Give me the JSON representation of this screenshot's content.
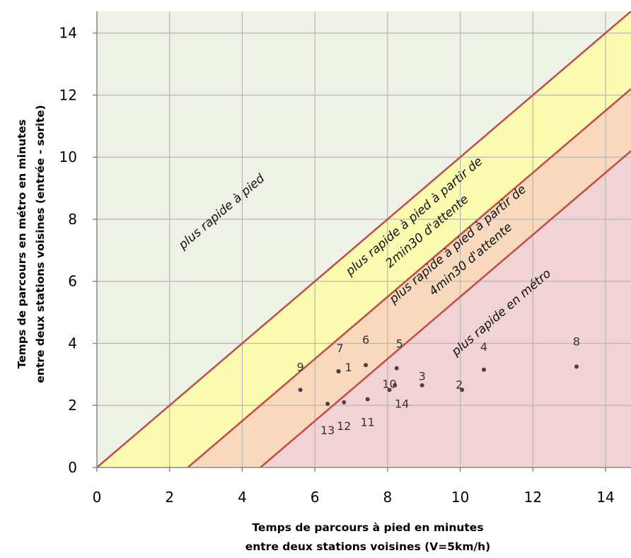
{
  "chart_data": {
    "type": "scatter",
    "xlabel_lines": [
      "Temps de parcours à pied en minutes",
      "entre deux stations voisines (V=5km/h)"
    ],
    "ylabel_lines": [
      "Temps de parcours en métro en minutes",
      "entre deux stations voisines (entrée - sorite)"
    ],
    "xlim": [
      0,
      14.7
    ],
    "ylim": [
      0,
      14.7
    ],
    "xticks": [
      0,
      2,
      4,
      6,
      8,
      10,
      12,
      14
    ],
    "yticks": [
      0,
      2,
      4,
      6,
      8,
      10,
      12,
      14
    ],
    "grid": true,
    "boundary_lines": [
      {
        "x_intercept": 0
      },
      {
        "x_intercept": 2.5
      },
      {
        "x_intercept": 4.5
      }
    ],
    "zones": [
      {
        "color": "#eef1e5"
      },
      {
        "color": "#fbfbb0"
      },
      {
        "color": "#f8d9bd"
      },
      {
        "color": "#f1d2d5"
      }
    ],
    "zone_labels": [
      {
        "lines": [
          "plus rapide à pied"
        ]
      },
      {
        "lines": [
          "plus rapide à pied à partir de",
          "2min30 d'attente"
        ]
      },
      {
        "lines": [
          "plus rapide à pied à partir de",
          "4min30 d'attente"
        ]
      },
      {
        "lines": [
          "plus rapide en métro"
        ]
      }
    ],
    "points": [
      {
        "label": "1",
        "x": 6.65,
        "y": 3.1
      },
      {
        "label": "2",
        "x": 10.05,
        "y": 2.5
      },
      {
        "label": "3",
        "x": 8.95,
        "y": 2.65
      },
      {
        "label": "4",
        "x": 10.65,
        "y": 3.15
      },
      {
        "label": "5",
        "x": 8.25,
        "y": 3.2
      },
      {
        "label": "6",
        "x": 7.4,
        "y": 3.3
      },
      {
        "label": "7",
        "x": 6.65,
        "y": 3.1
      },
      {
        "label": "8",
        "x": 13.2,
        "y": 3.25
      },
      {
        "label": "9",
        "x": 5.6,
        "y": 2.5
      },
      {
        "label": "10",
        "x": 8.05,
        "y": 2.5
      },
      {
        "label": "11",
        "x": 7.45,
        "y": 2.2
      },
      {
        "label": "12",
        "x": 6.8,
        "y": 2.1
      },
      {
        "label": "13",
        "x": 6.35,
        "y": 2.05
      },
      {
        "label": "14",
        "x": 8.2,
        "y": 2.65
      }
    ],
    "colors": {
      "boundary_line": "#c0504d",
      "grid": "#b6b6b6",
      "axis": "#888888",
      "point": "#5a3a3a"
    }
  }
}
